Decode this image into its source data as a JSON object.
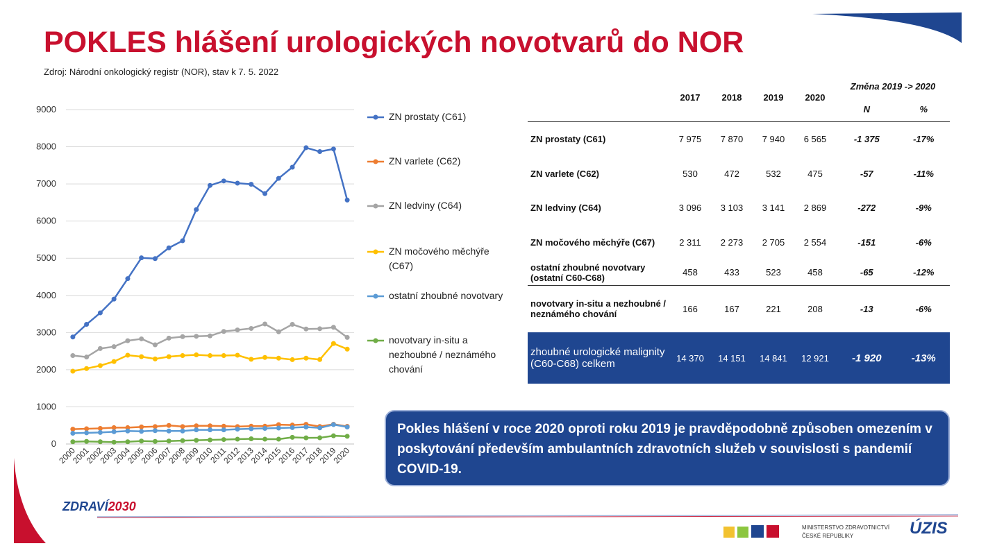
{
  "title": "POKLES hlášení urologických novotvarů do NOR",
  "source": "Zdroj: Národní onkologický registr (NOR), stav k 7. 5. 2022",
  "colors": {
    "title": "#c8102e",
    "table_total_bg": "#1f4690",
    "note_bg": "#1f4690",
    "prostata": "#4472c4",
    "varlete": "#ed7d31",
    "ledviny": "#a5a5a5",
    "mocovy": "#ffc000",
    "ostatni": "#5b9bd5",
    "insitu": "#70ad47"
  },
  "chart_data": {
    "type": "line",
    "x": [
      "2000",
      "2001",
      "2002",
      "2003",
      "2004",
      "2005",
      "2006",
      "2007",
      "2008",
      "2009",
      "2010",
      "2011",
      "2012",
      "2013",
      "2014",
      "2015",
      "2016",
      "2017",
      "2018",
      "2019",
      "2020"
    ],
    "ylim": [
      0,
      9000
    ],
    "yticks": [
      "0",
      "1000",
      "2000",
      "3000",
      "4000",
      "5000",
      "6000",
      "7000",
      "8000",
      "9000"
    ],
    "grid": true,
    "legend_position": "right",
    "series": [
      {
        "name": "ZN prostaty (C61)",
        "color": "#4472c4",
        "values": [
          2880,
          3220,
          3530,
          3900,
          4450,
          5010,
          4990,
          5280,
          5470,
          6310,
          6960,
          7080,
          7020,
          6990,
          6740,
          7150,
          7450,
          7975,
          7870,
          7940,
          6565
        ]
      },
      {
        "name": "ZN varlete (C62)",
        "color": "#ed7d31",
        "values": [
          400,
          410,
          420,
          440,
          440,
          460,
          470,
          500,
          470,
          490,
          490,
          480,
          470,
          480,
          480,
          520,
          510,
          530,
          472,
          532,
          475
        ]
      },
      {
        "name": "ZN ledviny (C64)",
        "color": "#a5a5a5",
        "values": [
          2380,
          2340,
          2570,
          2620,
          2780,
          2830,
          2670,
          2850,
          2890,
          2900,
          2910,
          3030,
          3070,
          3110,
          3230,
          3020,
          3220,
          3096,
          3103,
          3141,
          2869
        ]
      },
      {
        "name": "ZN močového měchýře (C67)",
        "color": "#ffc000",
        "values": [
          1960,
          2030,
          2110,
          2220,
          2390,
          2350,
          2290,
          2350,
          2380,
          2400,
          2380,
          2380,
          2390,
          2280,
          2330,
          2310,
          2270,
          2311,
          2273,
          2705,
          2554
        ]
      },
      {
        "name": "ostatní zhoubné novotvary",
        "color": "#5b9bd5",
        "values": [
          290,
          300,
          310,
          330,
          350,
          340,
          360,
          350,
          350,
          380,
          380,
          380,
          400,
          410,
          420,
          430,
          440,
          458,
          433,
          523,
          458
        ]
      },
      {
        "name": "novotvary in-situ a nezhoubné / neznámého chování",
        "color": "#70ad47",
        "values": [
          60,
          70,
          60,
          50,
          60,
          80,
          70,
          80,
          90,
          100,
          110,
          120,
          130,
          140,
          130,
          130,
          180,
          166,
          167,
          221,
          208
        ]
      }
    ]
  },
  "table": {
    "years": [
      "2017",
      "2018",
      "2019",
      "2020"
    ],
    "change_header": "Změna 2019 -> 2020",
    "change_cols": [
      "N",
      "%"
    ],
    "rows": [
      {
        "label": "ZN prostaty (C61)",
        "vals": [
          "7 975",
          "7 870",
          "7 940",
          "6 565"
        ],
        "n": "-1 375",
        "pct": "-17%"
      },
      {
        "label": "ZN varlete (C62)",
        "vals": [
          "530",
          "472",
          "532",
          "475"
        ],
        "n": "-57",
        "pct": "-11%"
      },
      {
        "label": "ZN ledviny (C64)",
        "vals": [
          "3 096",
          "3 103",
          "3 141",
          "2 869"
        ],
        "n": "-272",
        "pct": "-9%"
      },
      {
        "label": "ZN močového měchýře (C67)",
        "vals": [
          "2 311",
          "2 273",
          "2 705",
          "2 554"
        ],
        "n": "-151",
        "pct": "-6%"
      },
      {
        "label": "ostatní zhoubné novotvary (ostatní C60-C68)",
        "vals": [
          "458",
          "433",
          "523",
          "458"
        ],
        "n": "-65",
        "pct": "-12%"
      },
      {
        "label": "novotvary in-situ a nezhoubné / neznámého chování",
        "vals": [
          "166",
          "167",
          "221",
          "208"
        ],
        "n": "-13",
        "pct": "-6%"
      }
    ],
    "total": {
      "label": "zhoubné urologické malignity (C60-C68) celkem",
      "vals": [
        "14 370",
        "14 151",
        "14 841",
        "12 921"
      ],
      "n": "-1 920",
      "pct": "-13%"
    }
  },
  "note": "Pokles hlášení v roce 2020 oproti roku 2019 je pravděpodobně způsoben omezením v poskytování především ambulantních zdravotních služeb v souvislosti s pandemií COVID-19.",
  "footer": {
    "brand_a": "ZDRAVÍ",
    "brand_b": "2030",
    "ministry_line1": "MINISTERSTVO ZDRAVOTNICTVÍ",
    "ministry_line2": "ČESKÉ REPUBLIKY",
    "uzis": "ÚZIS"
  }
}
